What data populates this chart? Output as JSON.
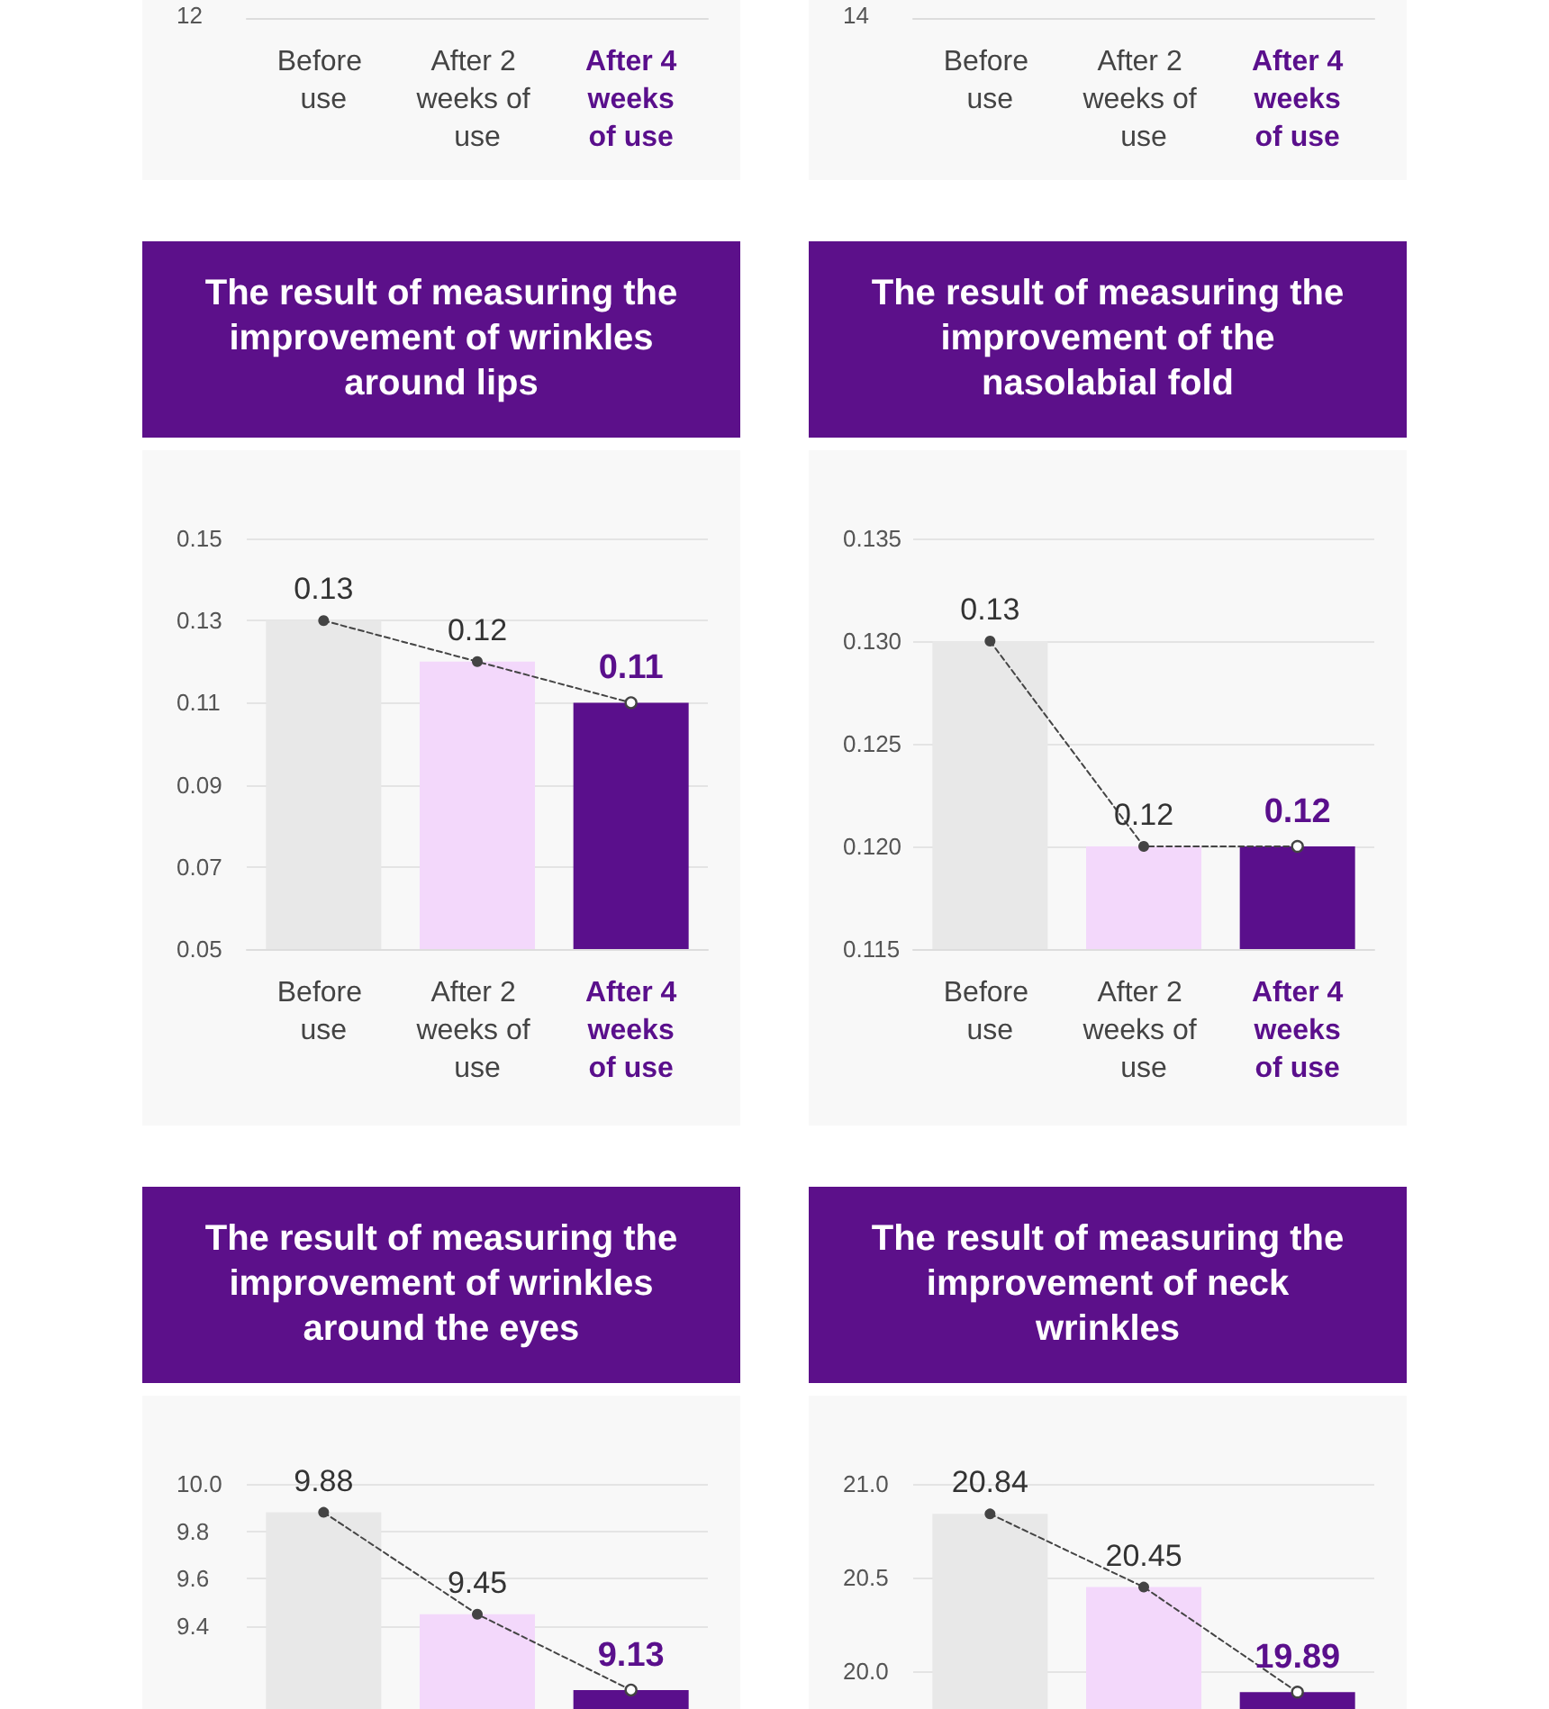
{
  "chart_data": [
    {
      "type": "other",
      "categories": [
        "Before use",
        "After 2 weeks of use",
        "After 4 weeks of use"
      ],
      "annotations": [
        "12"
      ]
    },
    {
      "type": "other",
      "categories": [
        "Before use",
        "After 2 weeks of use",
        "After 4 weeks of use"
      ],
      "annotations": [
        "14"
      ]
    },
    {
      "type": "bar",
      "title": "The result of measuring the improvement of wrinkles around lips",
      "categories": [
        "Before use",
        "After 2 weeks of use",
        "After 4 weeks of use"
      ],
      "series": [
        {
          "type": "bar",
          "colors": [
            "#e8e8e8",
            "#f3d8fb",
            "#5a0f8c"
          ],
          "values": [
            0.13,
            0.12,
            0.11
          ]
        },
        {
          "type": "line",
          "color": "#444444",
          "line_style": "dashed",
          "marker": "circle",
          "values": [
            0.13,
            0.12,
            0.11
          ],
          "value_labels": [
            "0.13",
            "0.12",
            "0.11"
          ]
        }
      ],
      "ylim": [
        0.05,
        0.15
      ],
      "yticks": [
        0.05,
        0.07,
        0.09,
        0.11,
        0.13,
        0.15
      ],
      "grid": "y"
    },
    {
      "type": "bar",
      "title": "The result of measuring the improvement of the nasolabial fold",
      "categories": [
        "Before use",
        "After 2 weeks of use",
        "After 4 weeks of use"
      ],
      "series": [
        {
          "type": "bar",
          "colors": [
            "#e8e8e8",
            "#f3d8fb",
            "#5a0f8c"
          ],
          "values": [
            0.13,
            0.12,
            0.12
          ]
        },
        {
          "type": "line",
          "color": "#444444",
          "line_style": "dashed",
          "marker": "circle",
          "values": [
            0.13,
            0.12,
            0.12
          ],
          "value_labels": [
            "0.13",
            "0.12",
            "0.12"
          ]
        }
      ],
      "ylim": [
        0.115,
        0.135
      ],
      "yticks": [
        0.115,
        {
          "value": 0.12,
          "label": "0.120"
        },
        0.125,
        {
          "value": 0.13,
          "label": "0.130"
        },
        0.135
      ],
      "grid": "y"
    },
    {
      "type": "bar",
      "title": "The result of measuring the improvement of wrinkles around the eyes",
      "categories": [
        null,
        null,
        null
      ],
      "series": [
        {
          "type": "bar",
          "colors": [
            "#e8e8e8",
            "#f3d8fb",
            "#5a0f8c"
          ],
          "values": [
            9.88,
            9.45,
            9.13
          ]
        },
        {
          "type": "line",
          "color": "#444444",
          "line_style": "dashed",
          "marker": "circle",
          "values": [
            9.88,
            9.45,
            9.13
          ],
          "value_labels": [
            "9.88",
            "9.45",
            "9.13"
          ]
        }
      ],
      "ylim": [
        9.05,
        10
      ],
      "yticks": [
        9.4,
        9.6,
        9.8,
        {
          "value": 10,
          "label": "10.0"
        }
      ],
      "grid": "y"
    },
    {
      "type": "bar",
      "title": "The result of measuring the improvement of neck wrinkles",
      "categories": [
        null,
        null,
        null
      ],
      "series": [
        {
          "type": "bar",
          "colors": [
            "#e8e8e8",
            "#f3d8fb",
            "#5a0f8c"
          ],
          "values": [
            20.84,
            20.45,
            19.89
          ]
        },
        {
          "type": "line",
          "color": "#444444",
          "line_style": "dashed",
          "marker": "circle",
          "values": [
            20.84,
            20.45,
            19.89
          ],
          "value_labels": [
            "20.84",
            "20.45",
            "19.89"
          ]
        }
      ],
      "ylim": [
        19.8,
        21
      ],
      "yticks": [
        {
          "value": 20,
          "label": "20.0"
        },
        20.5,
        {
          "value": 21,
          "label": "21.0"
        }
      ],
      "grid": "y"
    }
  ]
}
